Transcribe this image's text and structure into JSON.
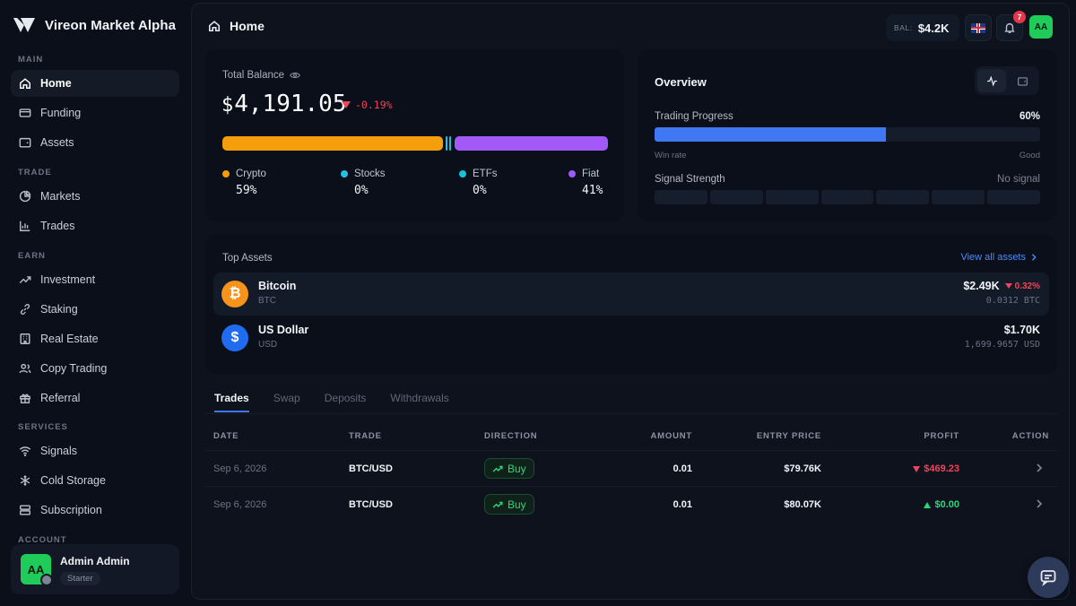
{
  "brand": {
    "name": "Vireon Market Alpha"
  },
  "sidebar": {
    "sections": {
      "main": "MAIN",
      "trade": "TRADE",
      "earn": "EARN",
      "services": "SERVICES",
      "account": "ACCOUNT"
    },
    "items": [
      {
        "label": "Home",
        "icon": "home-icon",
        "active": true
      },
      {
        "label": "Funding",
        "icon": "card-icon"
      },
      {
        "label": "Assets",
        "icon": "wallet-icon"
      },
      {
        "label": "Markets",
        "icon": "pie-icon"
      },
      {
        "label": "Trades",
        "icon": "chart-icon"
      },
      {
        "label": "Investment",
        "icon": "trend-icon"
      },
      {
        "label": "Staking",
        "icon": "link-icon"
      },
      {
        "label": "Real Estate",
        "icon": "building-icon"
      },
      {
        "label": "Copy Trading",
        "icon": "users-icon"
      },
      {
        "label": "Referral",
        "icon": "gift-icon"
      },
      {
        "label": "Signals",
        "icon": "wifi-icon"
      },
      {
        "label": "Cold Storage",
        "icon": "snowflake-icon"
      },
      {
        "label": "Subscription",
        "icon": "layers-icon"
      }
    ],
    "account": {
      "initials": "AA",
      "name": "Admin Admin",
      "plan": "Starter"
    }
  },
  "header": {
    "title": "Home",
    "balance_label": "BAL:",
    "balance_value": "$4.2K",
    "notification_count": "7",
    "avatar_initials": "AA"
  },
  "balance": {
    "title": "Total Balance",
    "currency": "$",
    "amount": "4,191.05",
    "change": "-0.19%",
    "allocation": [
      {
        "name": "Crypto",
        "value": "59%",
        "color": "#f59e0b"
      },
      {
        "name": "Stocks",
        "value": "0%",
        "color": "#22c3e6"
      },
      {
        "name": "ETFs",
        "value": "0%",
        "color": "#14c4d4"
      },
      {
        "name": "Fiat",
        "value": "41%",
        "color": "#a259f7"
      }
    ]
  },
  "overview": {
    "title": "Overview",
    "trading_progress_label": "Trading Progress",
    "trading_progress_value": "60%",
    "trading_progress_fraction": 0.6,
    "win_rate_label": "Win rate",
    "good_label": "Good",
    "signal_strength_label": "Signal Strength",
    "signal_value": "No signal",
    "signal_segments": 7
  },
  "top_assets": {
    "title": "Top Assets",
    "view_all": "View all assets",
    "items": [
      {
        "name": "Bitcoin",
        "symbol": "BTC",
        "value": "$2.49K",
        "change": "0.32%",
        "sub": "0.0312 BTC",
        "icon_glyph": "₿",
        "color": "#f7931a"
      },
      {
        "name": "US Dollar",
        "symbol": "USD",
        "value": "$1.70K",
        "change": "",
        "sub": "1,699.9657 USD",
        "icon_glyph": "$",
        "color": "#1f6cf0"
      }
    ]
  },
  "tabs": [
    "Trades",
    "Swap",
    "Deposits",
    "Withdrawals"
  ],
  "table": {
    "headers": [
      "DATE",
      "TRADE",
      "DIRECTION",
      "AMOUNT",
      "ENTRY PRICE",
      "PROFIT",
      "ACTION"
    ],
    "rows": [
      {
        "date": "Sep 6, 2026",
        "trade": "BTC/USD",
        "direction": "Buy",
        "amount": "0.01",
        "entry": "$79.76K",
        "profit": "$469.23",
        "profit_dir": "down"
      },
      {
        "date": "Sep 6, 2026",
        "trade": "BTC/USD",
        "direction": "Buy",
        "amount": "0.01",
        "entry": "$80.07K",
        "profit": "$0.00",
        "profit_dir": "up"
      }
    ]
  }
}
